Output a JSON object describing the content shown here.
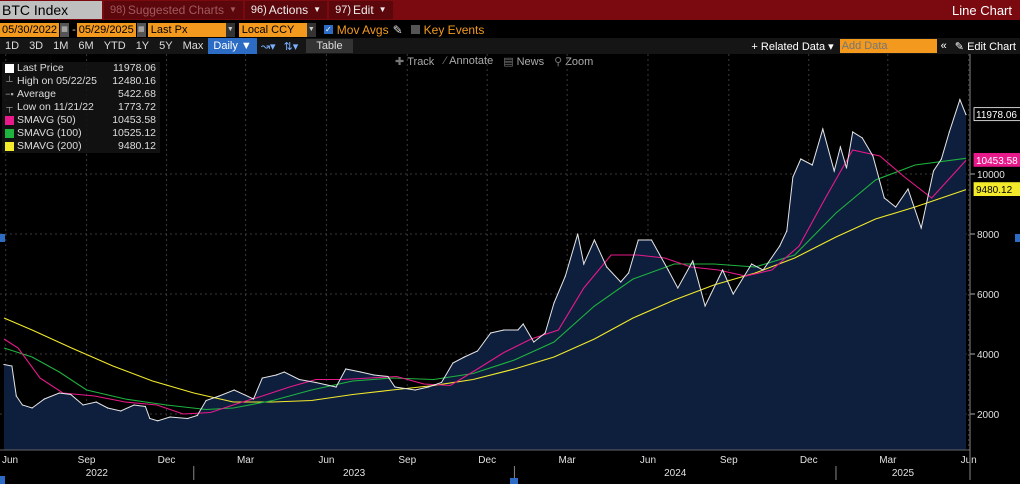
{
  "toolbar1": {
    "ticker": "BTC Index",
    "suggested_num": "98)",
    "suggested": "Suggested Charts",
    "actions_num": "96)",
    "actions": "Actions",
    "edit_num": "97)",
    "edit": "Edit",
    "title": "Line Chart"
  },
  "toolbar2": {
    "start_date": "05/30/2022",
    "end_date": "05/29/2025",
    "field": "Last Px",
    "currency": "Local CCY",
    "mov_avgs": "Mov Avgs",
    "key_events": "Key Events"
  },
  "toolbar3": {
    "periods": [
      "1D",
      "3D",
      "1M",
      "6M",
      "YTD",
      "1Y",
      "5Y",
      "Max"
    ],
    "frequency": "Daily",
    "table": "Table",
    "related_data": "+ Related Data",
    "add_data_placeholder": "Add Data",
    "edit_chart": "Edit Chart"
  },
  "chart_tools": [
    "Track",
    "Annotate",
    "News",
    "Zoom"
  ],
  "legend": [
    {
      "label": "Last Price",
      "value": "11978.06",
      "color": "#ffffff",
      "kind": "swatch"
    },
    {
      "label": "High on 05/22/25",
      "value": "12480.16",
      "color": "",
      "kind": "high"
    },
    {
      "label": "Average",
      "value": "5422.68",
      "color": "",
      "kind": "avg"
    },
    {
      "label": "Low on 11/21/22",
      "value": "1773.72",
      "color": "",
      "kind": "low"
    },
    {
      "label": "SMAVG (50)",
      "value": "10453.58",
      "color": "#e8198b",
      "kind": "swatch"
    },
    {
      "label": "SMAVG (100)",
      "value": "10525.12",
      "color": "#1fb33f",
      "kind": "swatch"
    },
    {
      "label": "SMAVG (200)",
      "value": "9480.12",
      "color": "#f2ea2b",
      "kind": "swatch"
    }
  ],
  "right_labels": [
    {
      "value": "11978.06",
      "y": 11978.06,
      "bg": "#000000",
      "fg": "#ffffff",
      "border": "#ffffff"
    },
    {
      "value": "10453.58",
      "y": 10453.58,
      "bg": "#e8198b",
      "fg": "#ffffff",
      "border": "#e8198b"
    },
    {
      "value": "9480.12",
      "y": 9480.12,
      "bg": "#f2ea2b",
      "fg": "#000000",
      "border": "#f2ea2b"
    }
  ],
  "chart_data": {
    "type": "area",
    "x_start": "2022-05-30",
    "x_end": "2025-05-29",
    "ylim": [
      800,
      13000
    ],
    "yticks": [
      2000,
      4000,
      6000,
      8000,
      10000
    ],
    "month_ticks": [
      "Jun",
      "Sep",
      "Dec",
      "Mar",
      "Jun",
      "Sep",
      "Dec",
      "Mar",
      "Jun",
      "Sep",
      "Dec",
      "Mar",
      "Jun"
    ],
    "year_labels": [
      "2022",
      "2023",
      "2024",
      "2025"
    ],
    "series": [
      {
        "name": "Last Price",
        "color": "#e6e6e6",
        "fill": "#0e1f3d",
        "points": [
          [
            "2022-05-30",
            3650
          ],
          [
            "2022-06-08",
            3600
          ],
          [
            "2022-06-13",
            2600
          ],
          [
            "2022-06-20",
            2300
          ],
          [
            "2022-07-01",
            2200
          ],
          [
            "2022-07-15",
            2500
          ],
          [
            "2022-08-01",
            2700
          ],
          [
            "2022-08-14",
            2650
          ],
          [
            "2022-08-28",
            2300
          ],
          [
            "2022-09-12",
            2400
          ],
          [
            "2022-09-25",
            2200
          ],
          [
            "2022-10-10",
            2100
          ],
          [
            "2022-10-25",
            2300
          ],
          [
            "2022-11-07",
            2250
          ],
          [
            "2022-11-12",
            1850
          ],
          [
            "2022-11-21",
            1774
          ],
          [
            "2022-12-05",
            1900
          ],
          [
            "2022-12-25",
            1850
          ],
          [
            "2023-01-05",
            1950
          ],
          [
            "2023-01-15",
            2450
          ],
          [
            "2023-01-30",
            2600
          ],
          [
            "2023-02-16",
            2800
          ],
          [
            "2023-03-10",
            2500
          ],
          [
            "2023-03-20",
            3200
          ],
          [
            "2023-04-05",
            3300
          ],
          [
            "2023-04-14",
            3400
          ],
          [
            "2023-05-01",
            3150
          ],
          [
            "2023-05-20",
            3050
          ],
          [
            "2023-06-12",
            2900
          ],
          [
            "2023-06-23",
            3500
          ],
          [
            "2023-07-10",
            3400
          ],
          [
            "2023-07-25",
            3300
          ],
          [
            "2023-08-10",
            3250
          ],
          [
            "2023-08-18",
            2900
          ],
          [
            "2023-09-10",
            2800
          ],
          [
            "2023-09-25",
            2900
          ],
          [
            "2023-10-10",
            3050
          ],
          [
            "2023-10-23",
            3700
          ],
          [
            "2023-11-05",
            3900
          ],
          [
            "2023-11-20",
            4100
          ],
          [
            "2023-12-05",
            4700
          ],
          [
            "2023-12-20",
            4800
          ],
          [
            "2024-01-05",
            4800
          ],
          [
            "2024-01-11",
            5000
          ],
          [
            "2024-01-23",
            4400
          ],
          [
            "2024-02-05",
            4700
          ],
          [
            "2024-02-15",
            5700
          ],
          [
            "2024-02-28",
            6600
          ],
          [
            "2024-03-13",
            8000
          ],
          [
            "2024-03-20",
            7000
          ],
          [
            "2024-04-01",
            7800
          ],
          [
            "2024-04-15",
            6900
          ],
          [
            "2024-05-01",
            6400
          ],
          [
            "2024-05-10",
            6700
          ],
          [
            "2024-05-21",
            7800
          ],
          [
            "2024-06-05",
            7800
          ],
          [
            "2024-06-24",
            6800
          ],
          [
            "2024-07-05",
            6200
          ],
          [
            "2024-07-22",
            7100
          ],
          [
            "2024-08-05",
            5600
          ],
          [
            "2024-08-25",
            6800
          ],
          [
            "2024-09-06",
            6000
          ],
          [
            "2024-09-27",
            7000
          ],
          [
            "2024-10-10",
            6800
          ],
          [
            "2024-10-29",
            7600
          ],
          [
            "2024-11-06",
            8100
          ],
          [
            "2024-11-13",
            9900
          ],
          [
            "2024-11-22",
            10500
          ],
          [
            "2024-12-05",
            10300
          ],
          [
            "2024-12-17",
            11500
          ],
          [
            "2024-12-30",
            10100
          ],
          [
            "2025-01-06",
            10900
          ],
          [
            "2025-01-13",
            10200
          ],
          [
            "2025-01-20",
            11400
          ],
          [
            "2025-01-31",
            11200
          ],
          [
            "2025-02-12",
            10600
          ],
          [
            "2025-02-25",
            9200
          ],
          [
            "2025-03-10",
            8900
          ],
          [
            "2025-03-24",
            9500
          ],
          [
            "2025-04-08",
            8200
          ],
          [
            "2025-04-22",
            10100
          ],
          [
            "2025-05-01",
            10500
          ],
          [
            "2025-05-10",
            11400
          ],
          [
            "2025-05-22",
            12480
          ],
          [
            "2025-05-29",
            11978
          ]
        ]
      },
      {
        "name": "SMAVG (50)",
        "color": "#e8198b",
        "points": [
          [
            "2022-05-30",
            4500
          ],
          [
            "2022-06-15",
            4200
          ],
          [
            "2022-07-10",
            3200
          ],
          [
            "2022-08-05",
            2700
          ],
          [
            "2022-09-10",
            2600
          ],
          [
            "2022-10-15",
            2400
          ],
          [
            "2022-11-20",
            2300
          ],
          [
            "2022-12-20",
            2000
          ],
          [
            "2023-01-20",
            2050
          ],
          [
            "2023-02-20",
            2350
          ],
          [
            "2023-03-20",
            2600
          ],
          [
            "2023-04-20",
            2900
          ],
          [
            "2023-05-20",
            3150
          ],
          [
            "2023-06-20",
            3150
          ],
          [
            "2023-07-20",
            3200
          ],
          [
            "2023-08-20",
            3250
          ],
          [
            "2023-09-20",
            3000
          ],
          [
            "2023-10-20",
            2950
          ],
          [
            "2023-11-20",
            3500
          ],
          [
            "2023-12-20",
            4050
          ],
          [
            "2024-01-20",
            4500
          ],
          [
            "2024-02-20",
            4800
          ],
          [
            "2024-03-20",
            6200
          ],
          [
            "2024-04-20",
            7300
          ],
          [
            "2024-05-20",
            7300
          ],
          [
            "2024-06-20",
            7200
          ],
          [
            "2024-07-20",
            6900
          ],
          [
            "2024-08-20",
            6800
          ],
          [
            "2024-09-20",
            6600
          ],
          [
            "2024-10-20",
            6800
          ],
          [
            "2024-11-20",
            7600
          ],
          [
            "2024-12-20",
            9200
          ],
          [
            "2025-01-20",
            10800
          ],
          [
            "2025-02-20",
            10600
          ],
          [
            "2025-03-20",
            9900
          ],
          [
            "2025-04-20",
            9200
          ],
          [
            "2025-05-29",
            10454
          ]
        ]
      },
      {
        "name": "SMAVG (100)",
        "color": "#1fb33f",
        "points": [
          [
            "2022-05-30",
            4200
          ],
          [
            "2022-07-01",
            3900
          ],
          [
            "2022-08-01",
            3400
          ],
          [
            "2022-09-01",
            2800
          ],
          [
            "2022-10-15",
            2500
          ],
          [
            "2022-12-01",
            2300
          ],
          [
            "2023-01-15",
            2150
          ],
          [
            "2023-02-15",
            2200
          ],
          [
            "2023-04-01",
            2450
          ],
          [
            "2023-05-15",
            2800
          ],
          [
            "2023-07-01",
            3100
          ],
          [
            "2023-08-15",
            3200
          ],
          [
            "2023-10-01",
            3150
          ],
          [
            "2023-11-15",
            3350
          ],
          [
            "2024-01-01",
            3800
          ],
          [
            "2024-02-15",
            4400
          ],
          [
            "2024-04-01",
            5600
          ],
          [
            "2024-05-15",
            6500
          ],
          [
            "2024-07-01",
            7000
          ],
          [
            "2024-08-15",
            7000
          ],
          [
            "2024-10-01",
            6900
          ],
          [
            "2024-11-15",
            7300
          ],
          [
            "2025-01-01",
            8700
          ],
          [
            "2025-02-15",
            9800
          ],
          [
            "2025-04-01",
            10300
          ],
          [
            "2025-05-29",
            10525
          ]
        ]
      },
      {
        "name": "SMAVG (200)",
        "color": "#f2ea2b",
        "points": [
          [
            "2022-05-30",
            5200
          ],
          [
            "2022-07-01",
            4800
          ],
          [
            "2022-08-15",
            4200
          ],
          [
            "2022-10-01",
            3600
          ],
          [
            "2022-11-15",
            3100
          ],
          [
            "2023-01-01",
            2700
          ],
          [
            "2023-02-15",
            2400
          ],
          [
            "2023-04-01",
            2400
          ],
          [
            "2023-05-15",
            2450
          ],
          [
            "2023-07-01",
            2650
          ],
          [
            "2023-08-15",
            2800
          ],
          [
            "2023-10-01",
            2950
          ],
          [
            "2023-11-15",
            3150
          ],
          [
            "2024-01-01",
            3500
          ],
          [
            "2024-02-15",
            3900
          ],
          [
            "2024-04-01",
            4500
          ],
          [
            "2024-05-15",
            5200
          ],
          [
            "2024-07-01",
            5800
          ],
          [
            "2024-08-15",
            6300
          ],
          [
            "2024-10-01",
            6700
          ],
          [
            "2024-11-15",
            7200
          ],
          [
            "2025-01-01",
            7900
          ],
          [
            "2025-02-15",
            8500
          ],
          [
            "2025-04-01",
            8900
          ],
          [
            "2025-05-29",
            9480
          ]
        ]
      }
    ]
  }
}
